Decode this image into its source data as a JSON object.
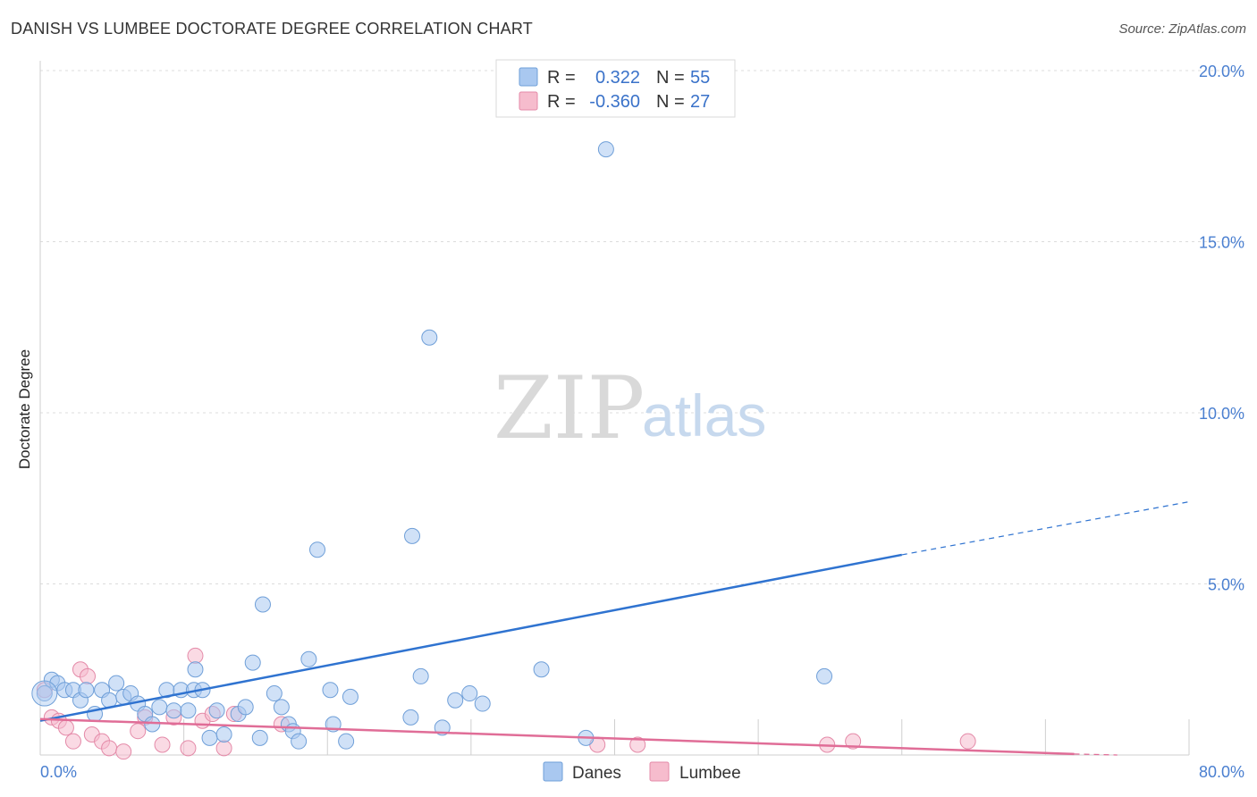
{
  "header": {
    "title": "DANISH VS LUMBEE DOCTORATE DEGREE CORRELATION CHART",
    "source": "Source: ZipAtlas.com"
  },
  "watermark": {
    "zip": "ZIP",
    "atlas": "atlas"
  },
  "legend_top": {
    "rows": [
      {
        "r_label": "R =",
        "r_value": "0.322",
        "n_label": "N =",
        "n_value": "55",
        "color": "#a9c8f0"
      },
      {
        "r_label": "R =",
        "r_value": "-0.360",
        "n_label": "N =",
        "n_value": "27",
        "color": "#f6bccd"
      }
    ]
  },
  "legend_bottom": {
    "danes": "Danes",
    "lumbee": "Lumbee"
  },
  "colors": {
    "danes_fill": "#a9c8f0",
    "danes_stroke": "#6f9fd8",
    "danes_line": "#2f73d0",
    "lumbee_fill": "#f6bccd",
    "lumbee_stroke": "#e48aa8",
    "lumbee_line": "#e06d97",
    "grid": "#dcdcdc"
  },
  "chart_data": {
    "type": "scatter",
    "title": "DANISH VS LUMBEE DOCTORATE DEGREE CORRELATION CHART",
    "xlabel": "",
    "ylabel": "Doctorate Degree",
    "xlim": [
      0,
      80
    ],
    "ylim": [
      0,
      20
    ],
    "x_tick_labels": [
      {
        "value": 0,
        "label": "0.0%"
      },
      {
        "value": 80,
        "label": "80.0%"
      }
    ],
    "y_ticks": [
      {
        "value": 5,
        "label": "5.0%"
      },
      {
        "value": 10,
        "label": "10.0%"
      },
      {
        "value": 15,
        "label": "15.0%"
      },
      {
        "value": 20,
        "label": "20.0%"
      }
    ],
    "series": [
      {
        "name": "Danes",
        "r": 0.322,
        "n": 55,
        "points": [
          [
            0.3,
            1.8
          ],
          [
            0.8,
            2.2
          ],
          [
            1.2,
            2.1
          ],
          [
            1.7,
            1.9
          ],
          [
            2.3,
            1.9
          ],
          [
            2.8,
            1.6
          ],
          [
            3.2,
            1.9
          ],
          [
            3.8,
            1.2
          ],
          [
            4.3,
            1.9
          ],
          [
            4.8,
            1.6
          ],
          [
            5.3,
            2.1
          ],
          [
            5.8,
            1.7
          ],
          [
            6.3,
            1.8
          ],
          [
            6.8,
            1.5
          ],
          [
            7.3,
            1.2
          ],
          [
            7.8,
            0.9
          ],
          [
            8.3,
            1.4
          ],
          [
            8.8,
            1.9
          ],
          [
            9.3,
            1.3
          ],
          [
            9.8,
            1.9
          ],
          [
            10.3,
            1.3
          ],
          [
            10.7,
            1.9
          ],
          [
            10.8,
            2.5
          ],
          [
            11.3,
            1.9
          ],
          [
            11.8,
            0.5
          ],
          [
            12.3,
            1.3
          ],
          [
            12.8,
            0.6
          ],
          [
            13.8,
            1.2
          ],
          [
            14.3,
            1.4
          ],
          [
            14.8,
            2.7
          ],
          [
            15.3,
            0.5
          ],
          [
            15.5,
            4.4
          ],
          [
            16.3,
            1.8
          ],
          [
            16.8,
            1.4
          ],
          [
            17.3,
            0.9
          ],
          [
            17.6,
            0.7
          ],
          [
            18.0,
            0.4
          ],
          [
            18.7,
            2.8
          ],
          [
            19.3,
            6.0
          ],
          [
            20.2,
            1.9
          ],
          [
            20.4,
            0.9
          ],
          [
            21.3,
            0.4
          ],
          [
            21.6,
            1.7
          ],
          [
            25.9,
            6.4
          ],
          [
            25.8,
            1.1
          ],
          [
            26.5,
            2.3
          ],
          [
            27.1,
            12.2
          ],
          [
            28.0,
            0.8
          ],
          [
            28.9,
            1.6
          ],
          [
            29.9,
            1.8
          ],
          [
            30.8,
            1.5
          ],
          [
            34.9,
            2.5
          ],
          [
            38.0,
            0.5
          ],
          [
            39.4,
            17.7
          ],
          [
            54.6,
            2.3
          ]
        ],
        "trend": {
          "x0": 0,
          "y0": 1.0,
          "x_solid_end": 60,
          "y_solid_end": 5.85,
          "x1": 80,
          "y1": 7.4
        }
      },
      {
        "name": "Lumbee",
        "r": -0.36,
        "n": 27,
        "points": [
          [
            0.3,
            1.9
          ],
          [
            0.8,
            1.1
          ],
          [
            1.3,
            1.0
          ],
          [
            1.8,
            0.8
          ],
          [
            2.3,
            0.4
          ],
          [
            2.8,
            2.5
          ],
          [
            3.3,
            2.3
          ],
          [
            3.6,
            0.6
          ],
          [
            4.3,
            0.4
          ],
          [
            4.8,
            0.2
          ],
          [
            5.8,
            0.1
          ],
          [
            6.8,
            0.7
          ],
          [
            7.3,
            1.1
          ],
          [
            8.5,
            0.3
          ],
          [
            9.3,
            1.1
          ],
          [
            10.3,
            0.2
          ],
          [
            10.8,
            2.9
          ],
          [
            11.3,
            1.0
          ],
          [
            12.0,
            1.2
          ],
          [
            12.8,
            0.2
          ],
          [
            13.5,
            1.2
          ],
          [
            16.8,
            0.9
          ],
          [
            38.8,
            0.3
          ],
          [
            41.6,
            0.3
          ],
          [
            54.8,
            0.3
          ],
          [
            56.6,
            0.4
          ],
          [
            64.6,
            0.4
          ]
        ],
        "trend": {
          "x0": 0,
          "y0": 1.05,
          "x_solid_end": 72,
          "y_solid_end": 0.03,
          "x1": 75,
          "y1": 0.0
        }
      }
    ]
  }
}
